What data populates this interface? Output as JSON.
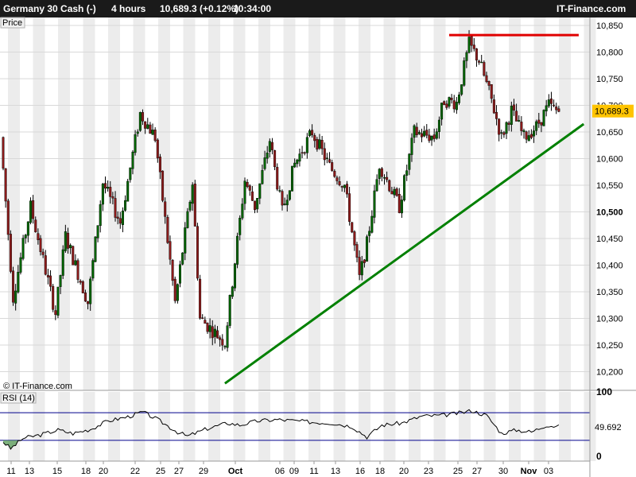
{
  "header": {
    "instrument": "Germany 30 Cash (-)",
    "timeframe": "4 hours",
    "quote": "10,689.3 (+0.12%)",
    "time": "10:34:00",
    "brand": "IT-Finance.com"
  },
  "chart_data": [
    {
      "type": "candlestick",
      "panel_label": "Price",
      "watermark": "© IT-Finance.com",
      "ylim": [
        10165,
        10865
      ],
      "yticks": [
        10200,
        10250,
        10300,
        10350,
        10400,
        10450,
        10500,
        10550,
        10600,
        10650,
        10700,
        10750,
        10800,
        10850
      ],
      "ytick_labels": [
        "10,200",
        "10,250",
        "10,300",
        "10,350",
        "10,400",
        "10,450",
        "10,500",
        "10,550",
        "10,600",
        "10,650",
        "10,700",
        "10,750",
        "10,800",
        "10,850"
      ],
      "bold_tick": "10,500",
      "last_price": "10,689.3",
      "last_value": 10689.3,
      "xtick_labels": [
        "11",
        "13",
        "15",
        "18",
        "20",
        "22",
        "25",
        "27",
        "29",
        "Oct",
        "06",
        "09",
        "11",
        "13",
        "16",
        "18",
        "20",
        "23",
        "25",
        "27",
        "30",
        "Nov",
        "03"
      ],
      "anchors": [
        {
          "bar": 0,
          "value": 10640
        },
        {
          "bar": 5,
          "value": 10340
        },
        {
          "bar": 12,
          "value": 10510
        },
        {
          "bar": 22,
          "value": 10310
        },
        {
          "bar": 26,
          "value": 10455
        },
        {
          "bar": 35,
          "value": 10330
        },
        {
          "bar": 41,
          "value": 10555
        },
        {
          "bar": 48,
          "value": 10480
        },
        {
          "bar": 56,
          "value": 10685
        },
        {
          "bar": 62,
          "value": 10640
        },
        {
          "bar": 70,
          "value": 10330
        },
        {
          "bar": 77,
          "value": 10555
        },
        {
          "bar": 80,
          "value": 10300
        },
        {
          "bar": 90,
          "value": 10255
        },
        {
          "bar": 98,
          "value": 10560
        },
        {
          "bar": 102,
          "value": 10510
        },
        {
          "bar": 108,
          "value": 10635
        },
        {
          "bar": 113,
          "value": 10500
        },
        {
          "bar": 118,
          "value": 10590
        },
        {
          "bar": 125,
          "value": 10650
        },
        {
          "bar": 132,
          "value": 10585
        },
        {
          "bar": 138,
          "value": 10550
        },
        {
          "bar": 144,
          "value": 10375
        },
        {
          "bar": 147,
          "value": 10440
        },
        {
          "bar": 152,
          "value": 10590
        },
        {
          "bar": 160,
          "value": 10510
        },
        {
          "bar": 166,
          "value": 10650
        },
        {
          "bar": 174,
          "value": 10640
        },
        {
          "bar": 178,
          "value": 10710
        },
        {
          "bar": 183,
          "value": 10705
        },
        {
          "bar": 188,
          "value": 10815
        },
        {
          "bar": 192,
          "value": 10785
        },
        {
          "bar": 197,
          "value": 10710
        },
        {
          "bar": 201,
          "value": 10640
        },
        {
          "bar": 205,
          "value": 10690
        },
        {
          "bar": 210,
          "value": 10640
        },
        {
          "bar": 215,
          "value": 10660
        },
        {
          "bar": 220,
          "value": 10700
        },
        {
          "bar": 223,
          "value": 10689.3
        }
      ],
      "trendlines": [
        {
          "name": "support",
          "color": "#008000",
          "from": {
            "bar": 89,
            "value": 10178
          },
          "to": {
            "bar": 233,
            "value": 10665
          }
        },
        {
          "name": "resistance",
          "color": "#e00000",
          "from": {
            "bar": 179,
            "value": 10832
          },
          "to": {
            "bar": 231,
            "value": 10832
          }
        }
      ]
    },
    {
      "type": "line",
      "panel_label": "RSI (14)",
      "ylim": [
        0,
        100
      ],
      "ytick_labels": [
        "100",
        "0"
      ],
      "bands": [
        30,
        70
      ],
      "last_value": "49.692",
      "anchors": [
        {
          "bar": 0,
          "value": 28
        },
        {
          "bar": 3,
          "value": 18
        },
        {
          "bar": 8,
          "value": 33
        },
        {
          "bar": 15,
          "value": 38
        },
        {
          "bar": 22,
          "value": 45
        },
        {
          "bar": 28,
          "value": 40
        },
        {
          "bar": 35,
          "value": 46
        },
        {
          "bar": 42,
          "value": 58
        },
        {
          "bar": 50,
          "value": 64
        },
        {
          "bar": 56,
          "value": 71
        },
        {
          "bar": 62,
          "value": 60
        },
        {
          "bar": 70,
          "value": 42
        },
        {
          "bar": 74,
          "value": 36
        },
        {
          "bar": 82,
          "value": 47
        },
        {
          "bar": 90,
          "value": 55
        },
        {
          "bar": 95,
          "value": 52
        },
        {
          "bar": 102,
          "value": 58
        },
        {
          "bar": 110,
          "value": 60
        },
        {
          "bar": 118,
          "value": 58
        },
        {
          "bar": 125,
          "value": 56
        },
        {
          "bar": 132,
          "value": 55
        },
        {
          "bar": 140,
          "value": 50
        },
        {
          "bar": 146,
          "value": 35
        },
        {
          "bar": 152,
          "value": 52
        },
        {
          "bar": 160,
          "value": 55
        },
        {
          "bar": 168,
          "value": 65
        },
        {
          "bar": 176,
          "value": 66
        },
        {
          "bar": 184,
          "value": 70
        },
        {
          "bar": 188,
          "value": 73
        },
        {
          "bar": 194,
          "value": 66
        },
        {
          "bar": 200,
          "value": 40
        },
        {
          "bar": 206,
          "value": 45
        },
        {
          "bar": 212,
          "value": 42
        },
        {
          "bar": 218,
          "value": 52
        },
        {
          "bar": 223,
          "value": 49.7
        }
      ]
    }
  ],
  "colors": {
    "up_candle": "#006400",
    "down_candle": "#8b1a1a",
    "stripe": "#ececec",
    "rsi_band": "#00008b",
    "rsi_fill": "#5f9f5f",
    "last_price_bg": "#ffc400"
  }
}
